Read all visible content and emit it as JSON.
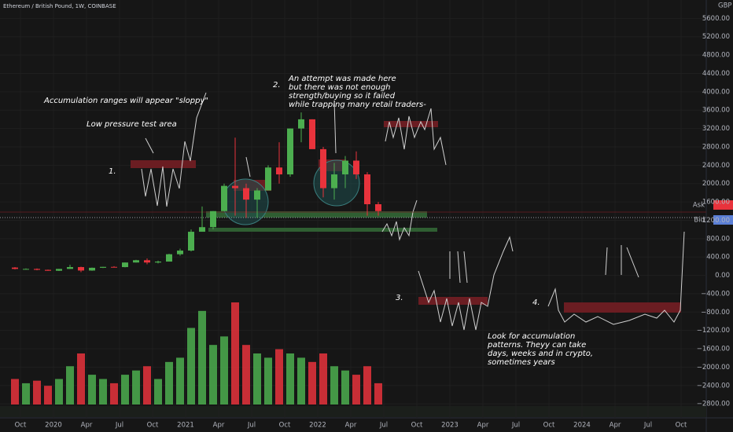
{
  "chart_data": {
    "type": "candlestick",
    "title": "Ethereum / British Pound, 1W, COINBASE",
    "currency": "GBP",
    "x": [
      "2019-09",
      "2019-10",
      "2019-11",
      "2019-12",
      "2020-01",
      "2020-02",
      "2020-03",
      "2020-04",
      "2020-05",
      "2020-06",
      "2020-07",
      "2020-08",
      "2020-09",
      "2020-10",
      "2020-11",
      "2020-12",
      "2021-01",
      "2021-02",
      "2021-03",
      "2021-04",
      "2021-05",
      "2021-06",
      "2021-07",
      "2021-08",
      "2021-09",
      "2021-10",
      "2021-11",
      "2021-12",
      "2022-01",
      "2022-02",
      "2022-03",
      "2022-04",
      "2022-05",
      "2022-06"
    ],
    "open": [
      170,
      140,
      140,
      120,
      100,
      140,
      180,
      105,
      165,
      185,
      180,
      280,
      330,
      280,
      300,
      460,
      540,
      950,
      1050,
      1400,
      1950,
      1900,
      1650,
      1850,
      2350,
      2200,
      3200,
      3400,
      2750,
      1900,
      2200,
      2500,
      2200,
      1550
    ],
    "high": [
      180,
      150,
      150,
      125,
      140,
      230,
      190,
      170,
      185,
      200,
      280,
      340,
      370,
      320,
      470,
      580,
      1000,
      1500,
      1400,
      2000,
      3000,
      2000,
      1900,
      2400,
      2900,
      3200,
      3550,
      3400,
      2800,
      2450,
      2600,
      2700,
      2250,
      1600
    ],
    "low": [
      130,
      125,
      110,
      100,
      95,
      140,
      70,
      100,
      160,
      175,
      175,
      280,
      240,
      260,
      300,
      430,
      520,
      950,
      1000,
      1400,
      1300,
      1250,
      1250,
      1850,
      2000,
      2150,
      2900,
      2800,
      1700,
      1650,
      1900,
      2100,
      1300,
      1300
    ],
    "close": [
      140,
      140,
      120,
      100,
      140,
      180,
      105,
      165,
      185,
      180,
      280,
      330,
      280,
      300,
      460,
      540,
      950,
      1050,
      1400,
      1950,
      1900,
      1650,
      1850,
      2350,
      2200,
      3200,
      3400,
      2750,
      1900,
      2200,
      2500,
      2200,
      1550,
      1400
    ],
    "volume": [
      30,
      25,
      28,
      22,
      30,
      45,
      60,
      35,
      30,
      25,
      35,
      40,
      45,
      30,
      50,
      55,
      90,
      110,
      70,
      80,
      120,
      70,
      60,
      55,
      65,
      60,
      55,
      50,
      60,
      45,
      40,
      35,
      45,
      25
    ],
    "up_color": "#4cae4f",
    "down_color": "#e8333c",
    "ylim": [
      -2900,
      6000
    ],
    "yticks": [
      {
        "value": 5600,
        "label": "5600.00"
      },
      {
        "value": 5200,
        "label": "5200.00"
      },
      {
        "value": 4800,
        "label": "4800.00"
      },
      {
        "value": 4400,
        "label": "4400.00"
      },
      {
        "value": 4000,
        "label": "4000.00"
      },
      {
        "value": 3600,
        "label": "3600.00"
      },
      {
        "value": 3200,
        "label": "3200.00"
      },
      {
        "value": 2800,
        "label": "2800.00"
      },
      {
        "value": 2400,
        "label": "2400.00"
      },
      {
        "value": 2000,
        "label": "2000.00"
      },
      {
        "value": 1600,
        "label": "1600.00"
      },
      {
        "value": 1200,
        "label": "1200.00"
      },
      {
        "value": 800,
        "label": "800.00"
      },
      {
        "value": 400,
        "label": "400.00"
      },
      {
        "value": 0,
        "label": "0.00"
      },
      {
        "value": -400,
        "label": "−400.00"
      },
      {
        "value": -800,
        "label": "−800.00"
      },
      {
        "value": -1200,
        "label": "−1200.00"
      },
      {
        "value": -1600,
        "label": "−1600.00"
      },
      {
        "value": -2000,
        "label": "−2000.00"
      },
      {
        "value": -2400,
        "label": "−2400.00"
      },
      {
        "value": -2800,
        "label": "−2800.00"
      }
    ],
    "xticks": [
      {
        "value": "2019-10",
        "label": "Oct"
      },
      {
        "value": "2020-01",
        "label": "2020"
      },
      {
        "value": "2020-04",
        "label": "Apr"
      },
      {
        "value": "2020-07",
        "label": "Jul"
      },
      {
        "value": "2020-10",
        "label": "Oct"
      },
      {
        "value": "2021-01",
        "label": "2021"
      },
      {
        "value": "2021-04",
        "label": "Apr"
      },
      {
        "value": "2021-07",
        "label": "Jul"
      },
      {
        "value": "2021-10",
        "label": "Oct"
      },
      {
        "value": "2022-01",
        "label": "2022"
      },
      {
        "value": "2022-04",
        "label": "Apr"
      },
      {
        "value": "2022-07",
        "label": "Jul"
      },
      {
        "value": "2022-10",
        "label": "Oct"
      },
      {
        "value": "2023-01",
        "label": "2023"
      },
      {
        "value": "2023-04",
        "label": "Apr"
      },
      {
        "value": "2023-07",
        "label": "Jul"
      },
      {
        "value": "2023-10",
        "label": "Oct"
      },
      {
        "value": "2024-01",
        "label": "2024"
      },
      {
        "value": "2024-04",
        "label": "Apr"
      },
      {
        "value": "2024-07",
        "label": "Jul"
      },
      {
        "value": "2024-10",
        "label": "Oct"
      }
    ],
    "annotations": [
      "Accumulation ranges will appear \"sloppy\"",
      "Low pressure test area",
      "1.",
      "2.",
      "3.",
      "4."
    ],
    "note_attempt": [
      "An attempt was made here",
      "but there was not enough",
      "strength/buying so it failed",
      "while trapping many retail traders-"
    ],
    "note_accumulation": [
      "Look for accumulation",
      "patterns. Theyy can take",
      "days, weeks and in crypto,",
      "sometimes years"
    ],
    "badges": [
      "Ask",
      "Bid"
    ]
  }
}
